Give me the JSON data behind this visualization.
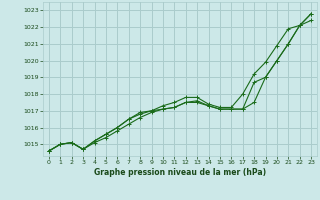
{
  "background_color": "#cce8e8",
  "grid_color": "#aacccc",
  "line_color": "#1a6b1a",
  "marker_color": "#1a6b1a",
  "xlabel": "Graphe pression niveau de la mer (hPa)",
  "xlabel_color": "#1a4a1a",
  "ylabel_color": "#1a4a1a",
  "xlim": [
    -0.5,
    23.5
  ],
  "ylim": [
    1014.3,
    1023.5
  ],
  "yticks": [
    1015,
    1016,
    1017,
    1018,
    1019,
    1020,
    1021,
    1022,
    1023
  ],
  "xticks": [
    0,
    1,
    2,
    3,
    4,
    5,
    6,
    7,
    8,
    9,
    10,
    11,
    12,
    13,
    14,
    15,
    16,
    17,
    18,
    19,
    20,
    21,
    22,
    23
  ],
  "series": [
    [
      1014.6,
      1015.0,
      1015.1,
      1014.7,
      1015.1,
      1015.4,
      1015.8,
      1016.2,
      1016.6,
      1016.9,
      1017.1,
      1017.2,
      1017.5,
      1017.5,
      1017.3,
      1017.1,
      1017.1,
      1017.1,
      1018.7,
      1019.0,
      1020.0,
      1021.0,
      1022.1,
      1022.4
    ],
    [
      1014.6,
      1015.0,
      1015.1,
      1014.7,
      1015.2,
      1015.6,
      1016.0,
      1016.5,
      1016.8,
      1017.0,
      1017.3,
      1017.5,
      1017.8,
      1017.8,
      1017.4,
      1017.2,
      1017.2,
      1018.0,
      1019.2,
      1019.9,
      1020.9,
      1021.9,
      1022.1,
      1022.8
    ],
    [
      1014.6,
      1015.0,
      1015.1,
      1014.7,
      1015.2,
      1015.6,
      1016.0,
      1016.5,
      1016.9,
      1017.0,
      1017.1,
      1017.2,
      1017.5,
      1017.6,
      1017.3,
      1017.1,
      1017.1,
      1017.1,
      1017.5,
      1019.0,
      1020.0,
      1021.0,
      1022.1,
      1022.8
    ]
  ]
}
